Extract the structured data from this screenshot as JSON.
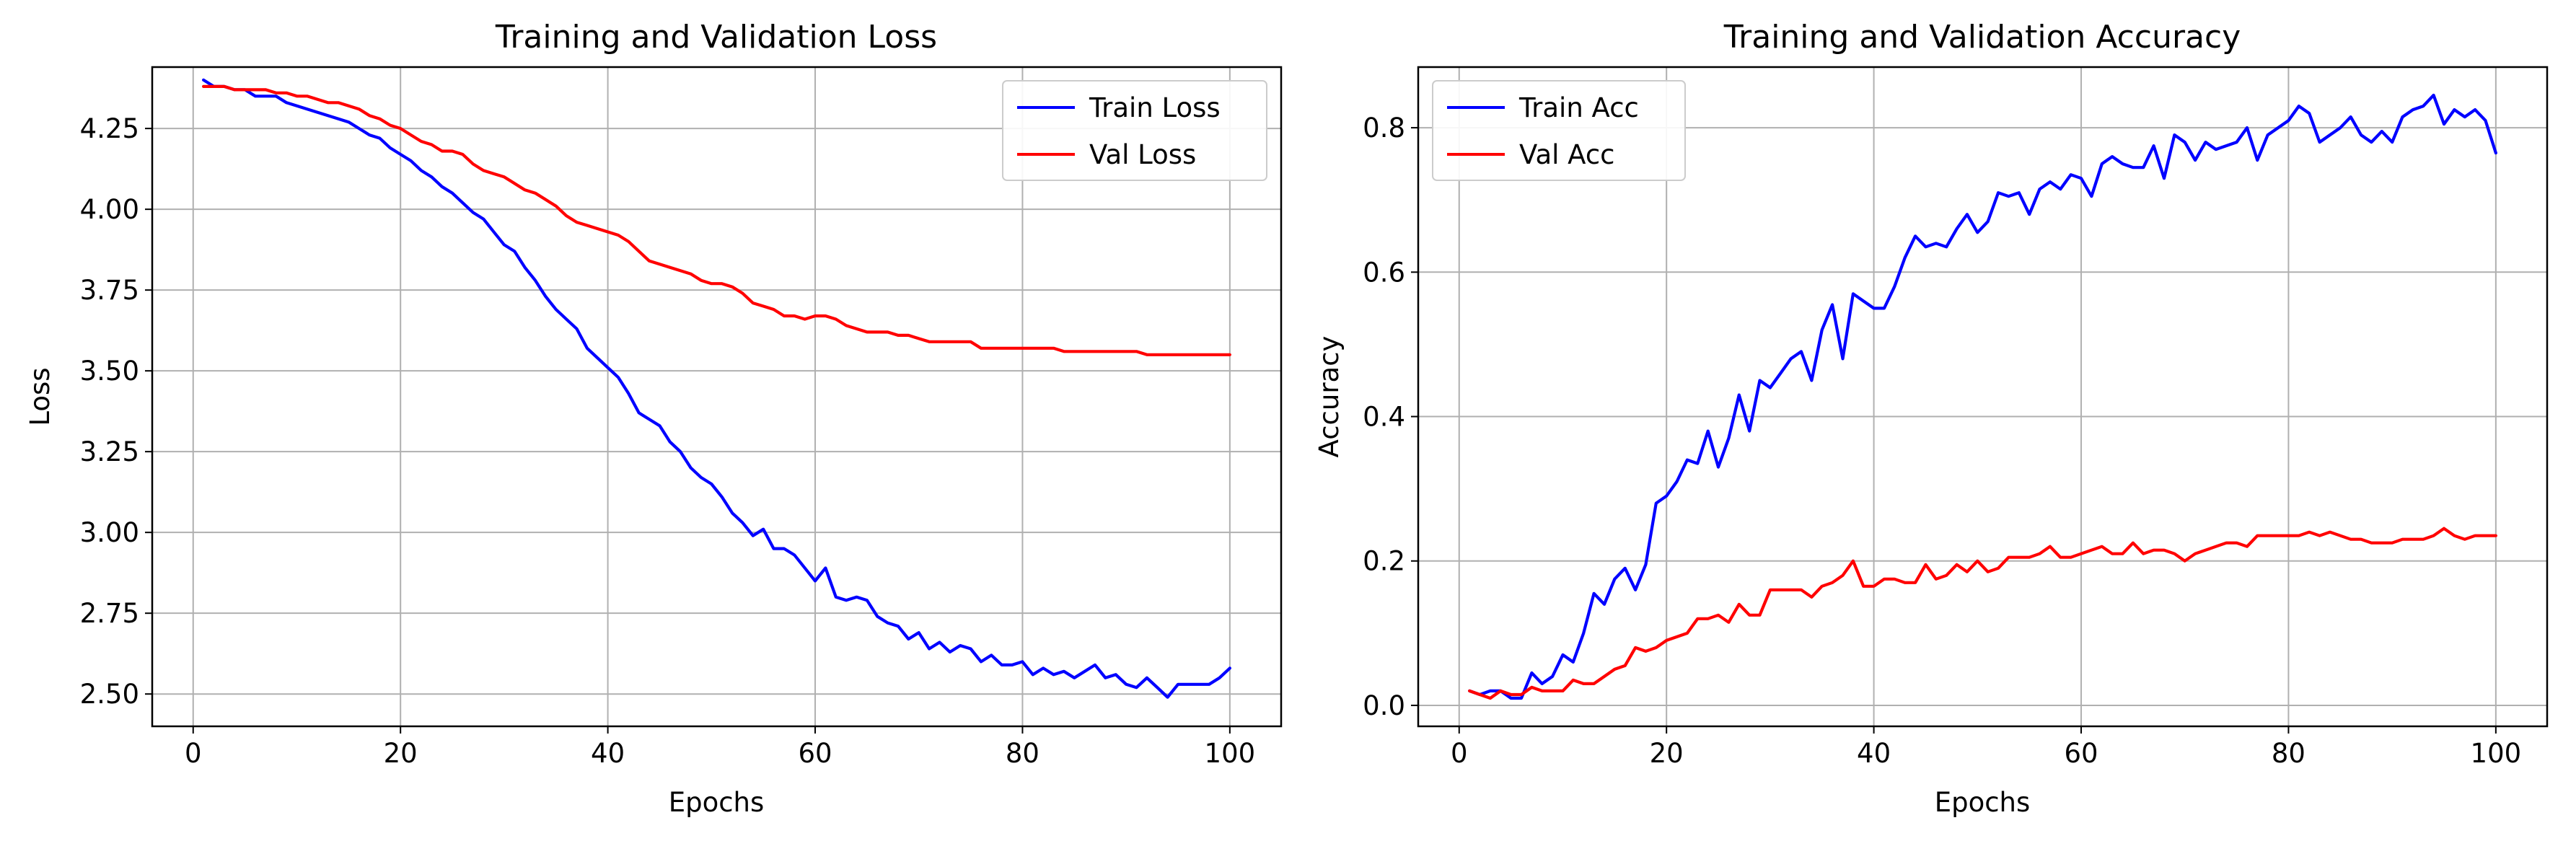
{
  "chart_data": [
    {
      "type": "line",
      "title": "Training and Validation Loss",
      "xlabel": "Epochs",
      "ylabel": "Loss",
      "xlim": [
        -3.95,
        104.95
      ],
      "ylim": [
        2.4,
        4.44
      ],
      "xticks": [
        0,
        20,
        40,
        60,
        80,
        100
      ],
      "xtick_labels": [
        "0",
        "20",
        "40",
        "60",
        "80",
        "100"
      ],
      "yticks": [
        2.5,
        2.75,
        3.0,
        3.25,
        3.5,
        3.75,
        4.0,
        4.25
      ],
      "ytick_labels": [
        "2.50",
        "2.75",
        "3.00",
        "3.25",
        "3.50",
        "3.75",
        "4.00",
        "4.25"
      ],
      "grid": true,
      "legend_position": "upper right",
      "x": [
        1,
        2,
        3,
        4,
        5,
        6,
        7,
        8,
        9,
        10,
        11,
        12,
        13,
        14,
        15,
        16,
        17,
        18,
        19,
        20,
        21,
        22,
        23,
        24,
        25,
        26,
        27,
        28,
        29,
        30,
        31,
        32,
        33,
        34,
        35,
        36,
        37,
        38,
        39,
        40,
        41,
        42,
        43,
        44,
        45,
        46,
        47,
        48,
        49,
        50,
        51,
        52,
        53,
        54,
        55,
        56,
        57,
        58,
        59,
        60,
        61,
        62,
        63,
        64,
        65,
        66,
        67,
        68,
        69,
        70,
        71,
        72,
        73,
        74,
        75,
        76,
        77,
        78,
        79,
        80,
        81,
        82,
        83,
        84,
        85,
        86,
        87,
        88,
        89,
        90,
        91,
        92,
        93,
        94,
        95,
        96,
        97,
        98,
        99,
        100
      ],
      "series": [
        {
          "name": "Train Loss",
          "color": "#0000ff",
          "values": [
            4.4,
            4.38,
            4.38,
            4.37,
            4.37,
            4.35,
            4.35,
            4.35,
            4.33,
            4.32,
            4.31,
            4.3,
            4.29,
            4.28,
            4.27,
            4.25,
            4.23,
            4.22,
            4.19,
            4.17,
            4.15,
            4.12,
            4.1,
            4.07,
            4.05,
            4.02,
            3.99,
            3.97,
            3.93,
            3.89,
            3.87,
            3.82,
            3.78,
            3.73,
            3.69,
            3.66,
            3.63,
            3.57,
            3.54,
            3.51,
            3.48,
            3.43,
            3.37,
            3.35,
            3.33,
            3.28,
            3.25,
            3.2,
            3.17,
            3.15,
            3.11,
            3.06,
            3.03,
            2.99,
            3.01,
            2.95,
            2.95,
            2.93,
            2.89,
            2.85,
            2.89,
            2.8,
            2.79,
            2.8,
            2.79,
            2.74,
            2.72,
            2.71,
            2.67,
            2.69,
            2.64,
            2.66,
            2.63,
            2.65,
            2.64,
            2.6,
            2.62,
            2.59,
            2.59,
            2.6,
            2.56,
            2.58,
            2.56,
            2.57,
            2.55,
            2.57,
            2.59,
            2.55,
            2.56,
            2.53,
            2.52,
            2.55,
            2.52,
            2.49,
            2.53,
            2.53,
            2.53,
            2.53,
            2.55,
            2.58
          ]
        },
        {
          "name": "Val Loss",
          "color": "#ff0000",
          "values": [
            4.38,
            4.38,
            4.38,
            4.37,
            4.37,
            4.37,
            4.37,
            4.36,
            4.36,
            4.35,
            4.35,
            4.34,
            4.33,
            4.33,
            4.32,
            4.31,
            4.29,
            4.28,
            4.26,
            4.25,
            4.23,
            4.21,
            4.2,
            4.18,
            4.18,
            4.17,
            4.14,
            4.12,
            4.11,
            4.1,
            4.08,
            4.06,
            4.05,
            4.03,
            4.01,
            3.98,
            3.96,
            3.95,
            3.94,
            3.93,
            3.92,
            3.9,
            3.87,
            3.84,
            3.83,
            3.82,
            3.81,
            3.8,
            3.78,
            3.77,
            3.77,
            3.76,
            3.74,
            3.71,
            3.7,
            3.69,
            3.67,
            3.67,
            3.66,
            3.67,
            3.67,
            3.66,
            3.64,
            3.63,
            3.62,
            3.62,
            3.62,
            3.61,
            3.61,
            3.6,
            3.59,
            3.59,
            3.59,
            3.59,
            3.59,
            3.57,
            3.57,
            3.57,
            3.57,
            3.57,
            3.57,
            3.57,
            3.57,
            3.56,
            3.56,
            3.56,
            3.56,
            3.56,
            3.56,
            3.56,
            3.56,
            3.55,
            3.55,
            3.55,
            3.55,
            3.55,
            3.55,
            3.55,
            3.55,
            3.55
          ]
        }
      ]
    },
    {
      "type": "line",
      "title": "Training and Validation Accuracy",
      "xlabel": "Epochs",
      "ylabel": "Accuracy",
      "xlim": [
        -3.95,
        104.95
      ],
      "ylim": [
        -0.029,
        0.884
      ],
      "xticks": [
        0,
        20,
        40,
        60,
        80,
        100
      ],
      "xtick_labels": [
        "0",
        "20",
        "40",
        "60",
        "80",
        "100"
      ],
      "yticks": [
        0.0,
        0.2,
        0.4,
        0.6,
        0.8
      ],
      "ytick_labels": [
        "0.0",
        "0.2",
        "0.4",
        "0.6",
        "0.8"
      ],
      "grid": true,
      "legend_position": "upper left",
      "x": [
        1,
        2,
        3,
        4,
        5,
        6,
        7,
        8,
        9,
        10,
        11,
        12,
        13,
        14,
        15,
        16,
        17,
        18,
        19,
        20,
        21,
        22,
        23,
        24,
        25,
        26,
        27,
        28,
        29,
        30,
        31,
        32,
        33,
        34,
        35,
        36,
        37,
        38,
        39,
        40,
        41,
        42,
        43,
        44,
        45,
        46,
        47,
        48,
        49,
        50,
        51,
        52,
        53,
        54,
        55,
        56,
        57,
        58,
        59,
        60,
        61,
        62,
        63,
        64,
        65,
        66,
        67,
        68,
        69,
        70,
        71,
        72,
        73,
        74,
        75,
        76,
        77,
        78,
        79,
        80,
        81,
        82,
        83,
        84,
        85,
        86,
        87,
        88,
        89,
        90,
        91,
        92,
        93,
        94,
        95,
        96,
        97,
        98,
        99,
        100
      ],
      "series": [
        {
          "name": "Train Acc",
          "color": "#0000ff",
          "values": [
            0.02,
            0.015,
            0.02,
            0.02,
            0.01,
            0.01,
            0.045,
            0.03,
            0.04,
            0.07,
            0.06,
            0.1,
            0.155,
            0.14,
            0.175,
            0.19,
            0.16,
            0.195,
            0.28,
            0.29,
            0.31,
            0.34,
            0.335,
            0.38,
            0.33,
            0.37,
            0.43,
            0.38,
            0.45,
            0.44,
            0.46,
            0.48,
            0.49,
            0.45,
            0.52,
            0.555,
            0.48,
            0.57,
            0.56,
            0.55,
            0.55,
            0.58,
            0.62,
            0.65,
            0.635,
            0.64,
            0.635,
            0.66,
            0.68,
            0.655,
            0.67,
            0.71,
            0.705,
            0.71,
            0.68,
            0.715,
            0.725,
            0.715,
            0.735,
            0.73,
            0.705,
            0.75,
            0.76,
            0.75,
            0.745,
            0.745,
            0.775,
            0.73,
            0.79,
            0.78,
            0.755,
            0.78,
            0.77,
            0.775,
            0.78,
            0.8,
            0.755,
            0.79,
            0.8,
            0.81,
            0.83,
            0.82,
            0.78,
            0.79,
            0.8,
            0.815,
            0.79,
            0.78,
            0.795,
            0.78,
            0.815,
            0.825,
            0.83,
            0.845,
            0.805,
            0.825,
            0.815,
            0.825,
            0.81,
            0.765
          ]
        },
        {
          "name": "Val Acc",
          "color": "#ff0000",
          "values": [
            0.02,
            0.015,
            0.01,
            0.02,
            0.015,
            0.015,
            0.025,
            0.02,
            0.02,
            0.02,
            0.035,
            0.03,
            0.03,
            0.04,
            0.05,
            0.055,
            0.08,
            0.075,
            0.08,
            0.09,
            0.095,
            0.1,
            0.12,
            0.12,
            0.125,
            0.115,
            0.14,
            0.125,
            0.125,
            0.16,
            0.16,
            0.16,
            0.16,
            0.15,
            0.165,
            0.17,
            0.18,
            0.2,
            0.165,
            0.165,
            0.175,
            0.175,
            0.17,
            0.17,
            0.195,
            0.175,
            0.18,
            0.195,
            0.185,
            0.2,
            0.185,
            0.19,
            0.205,
            0.205,
            0.205,
            0.21,
            0.22,
            0.205,
            0.205,
            0.21,
            0.215,
            0.22,
            0.21,
            0.21,
            0.225,
            0.21,
            0.215,
            0.215,
            0.21,
            0.2,
            0.21,
            0.215,
            0.22,
            0.225,
            0.225,
            0.22,
            0.235,
            0.235,
            0.235,
            0.235,
            0.235,
            0.24,
            0.235,
            0.24,
            0.235,
            0.23,
            0.23,
            0.225,
            0.225,
            0.225,
            0.23,
            0.23,
            0.23,
            0.235,
            0.245,
            0.235,
            0.23,
            0.235,
            0.235,
            0.235
          ]
        }
      ]
    }
  ]
}
